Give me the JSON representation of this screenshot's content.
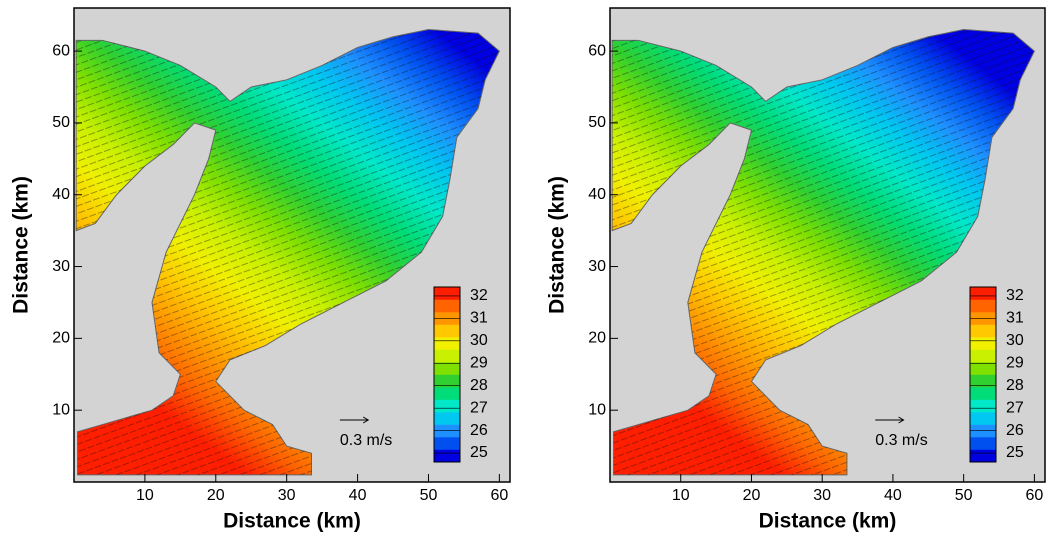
{
  "chart_data": [
    {
      "type": "field",
      "xlabel": "Distance (km)",
      "ylabel": "Distance (km)",
      "xlim": [
        0,
        61.5
      ],
      "ylim": [
        0,
        66
      ],
      "xticks": [
        10,
        20,
        30,
        40,
        50,
        60
      ],
      "yticks": [
        10,
        20,
        30,
        40,
        50,
        60
      ],
      "annotation": "0.3 m/s",
      "clim": [
        24.6,
        32.4
      ],
      "colorbar_ticks": [
        25,
        26,
        27,
        28,
        29,
        30,
        31,
        32
      ],
      "colorbar_colors": [
        "#0000e0",
        "#0050f0",
        "#1e90ff",
        "#00c8f0",
        "#00e8c8",
        "#00dc78",
        "#30d030",
        "#80e000",
        "#c8f000",
        "#f0f000",
        "#ffc800",
        "#ff9600",
        "#ff6400",
        "#ff1e00"
      ]
    },
    {
      "type": "field",
      "xlabel": "Distance (km)",
      "ylabel": "Distance (km)",
      "xlim": [
        0,
        61.5
      ],
      "ylim": [
        0,
        66
      ],
      "xticks": [
        10,
        20,
        30,
        40,
        50,
        60
      ],
      "yticks": [
        10,
        20,
        30,
        40,
        50,
        60
      ],
      "annotation": "0.3 m/s",
      "clim": [
        24.6,
        32.4
      ],
      "colorbar_ticks": [
        25,
        26,
        27,
        28,
        29,
        30,
        31,
        32
      ],
      "colorbar_colors": [
        "#0000e0",
        "#0050f0",
        "#1e90ff",
        "#00c8f0",
        "#00e8c8",
        "#00dc78",
        "#30d030",
        "#80e000",
        "#c8f000",
        "#f0f000",
        "#ffc800",
        "#ff9600",
        "#ff6400",
        "#ff1e00"
      ]
    }
  ]
}
